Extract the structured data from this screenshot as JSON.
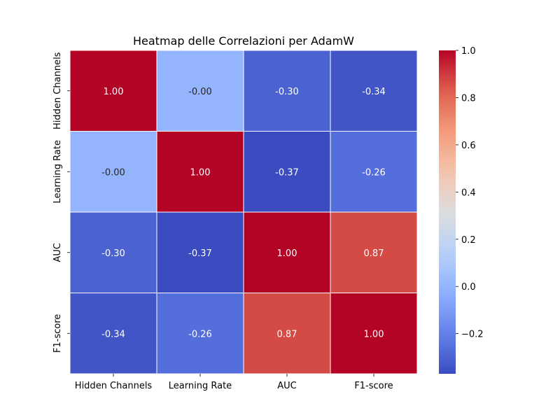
{
  "chart_data": {
    "type": "heatmap",
    "title": "Heatmap delle Correlazioni per AdamW",
    "xlabel": "",
    "ylabel": "",
    "rows": [
      "Hidden Channels",
      "Learning Rate",
      "AUC",
      "F1-score"
    ],
    "columns": [
      "Hidden Channels",
      "Learning Rate",
      "AUC",
      "F1-score"
    ],
    "values": [
      [
        1.0,
        -0.0,
        -0.3,
        -0.34
      ],
      [
        -0.0,
        1.0,
        -0.37,
        -0.26
      ],
      [
        -0.3,
        -0.37,
        1.0,
        0.87
      ],
      [
        -0.34,
        -0.26,
        0.87,
        1.0
      ]
    ],
    "cell_labels": [
      [
        "1.00",
        "-0.00",
        "-0.30",
        "-0.34"
      ],
      [
        "-0.00",
        "1.00",
        "-0.37",
        "-0.26"
      ],
      [
        "-0.30",
        "-0.37",
        "1.00",
        "0.87"
      ],
      [
        "-0.34",
        "-0.26",
        "0.87",
        "1.00"
      ]
    ],
    "colormap": "coolwarm",
    "vmin": -0.37,
    "vmax": 1.0,
    "colorbar_ticks": [
      1.0,
      0.8,
      0.6,
      0.4,
      0.2,
      0.0,
      -0.2
    ],
    "colorbar_tick_labels": [
      "1.0",
      "0.8",
      "0.6",
      "0.4",
      "0.2",
      "0.0",
      "−0.2"
    ],
    "grid": true,
    "cell_border_color": "#ffffff",
    "colorbar_position": "right"
  }
}
